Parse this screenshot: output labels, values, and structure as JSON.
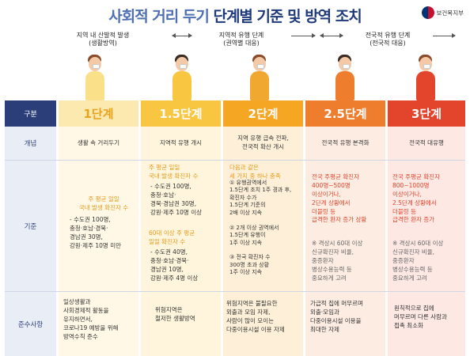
{
  "title": {
    "part1": "사회적 거리 두기",
    "part2": "단계별 기준 및 방역 조치"
  },
  "logo": {
    "text": "보건복지부"
  },
  "phases": [
    {
      "label_line1": "지역 내 산발적 발생",
      "label_line2": "(생활방역)"
    },
    {
      "label_line1": "지역적 유행 단계",
      "label_line2": "(권역별 대응)"
    },
    {
      "label_line1": "전국적 유행 단계",
      "label_line2": "(전국적 대응)"
    }
  ],
  "colors": {
    "navy": "#2c3e7a",
    "lvl1": "#fbe9b0",
    "lvl15": "#f9c642",
    "lvl2": "#f5a623",
    "lvl25": "#ef7d2e",
    "lvl3": "#e2452c"
  },
  "header": {
    "row_label": "구분",
    "levels": [
      "1단계",
      "1.5단계",
      "2단계",
      "2.5단계",
      "3단계"
    ]
  },
  "rows": {
    "concept": {
      "label": "개념",
      "cells": [
        "생활 속 거리두기",
        "지역적 유행 개시",
        "지역 유행 급속 전파,\n전국적 확산 개시",
        "전국적 유행 본격화",
        "전국적 대유행"
      ]
    },
    "criteria": {
      "label": "기준",
      "lvl1_head": "주 평균 일일\n국내 발생 확진자 수",
      "lvl1_items": "- 수도권 100명,\n충청·호남·경북·\n경남권 30명,\n강원·제주 10명 미만",
      "lvl15_head1": "주 평균 일일\n국내 발생 확진자 수",
      "lvl15_items1": "- 수도권 100명,\n충청·호남·\n경북·경남권 30명,\n강원·제주 10명 이상",
      "lvl15_head2": "60대 이상 주 평균\n일일 확진자 수",
      "lvl15_items2": "- 수도권 40명,\n충청·호남·경북·\n경남권 10명,\n강원·제주 4명 이상",
      "lvl2_head": "다음과 같은\n세 가지 중 하나 충족",
      "lvl2_items": "① 유행권역에서\n1.5단계 조치 1주 경과 후,\n확진자 수가\n1.5단계 기준의\n2배 이상 지속\n\n② 2개 이상 권역에서\n1.5단계 유행이\n1주 이상 지속\n\n③ 전국 확진자 수\n300명 초과 상황\n1주 이상 지속",
      "lvl25_head": "전국 주평균 확진자\n400명~500명\n이상이거나,\n2단계 상황에서\n더블링 등\n급격한 환자 증가 상황",
      "lvl25_note": "※ 격상시 60대 이상\n신규확진자 비율,\n중증환자\n병상수용능력 등\n중요하게 고려",
      "lvl3_head": "전국 주평균 확진자\n800~1000명\n이상이거나,\n2.5단계 상황에서\n더블링 등\n급격한 환자 증가",
      "lvl3_note": "※ 격상시 60대 이상\n신규확진자 비율,\n중증환자\n병상수용능력 등\n중요하게 고려"
    },
    "compliance": {
      "label": "준수사항",
      "cells": [
        "일상생활과\n사회경제적 활동을\n유지하면서,\n코로나19 예방을 위해\n방역수칙 준수",
        "위험지역은\n철저한 생활방역",
        "위험지역은 불필요한\n외출과 모임 자제,\n사람이 많이 모이는\n다중이용시설 이용 자제",
        "가급적 집에 머무르며\n외출·모임과\n다중이용시설 이용을\n최대한 자제",
        "원칙적으로 집에\n머무르며 다른 사람과\n접촉 최소화"
      ]
    }
  }
}
